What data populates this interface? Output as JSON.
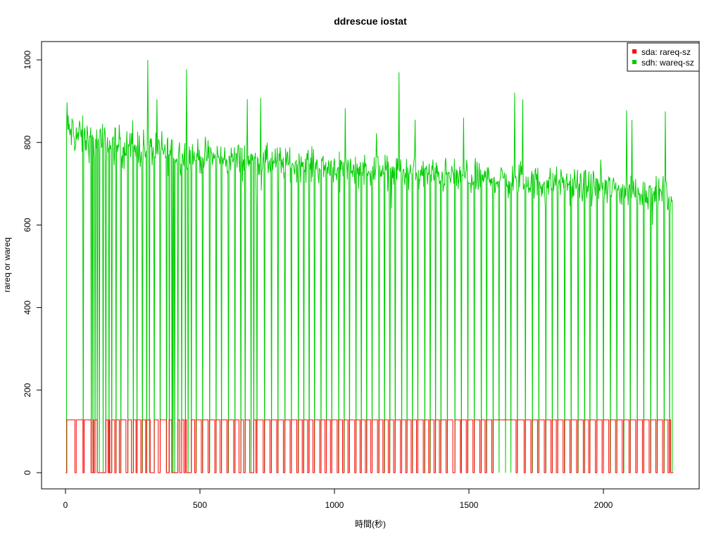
{
  "chart_data": {
    "type": "line",
    "title": "ddrescue iostat",
    "xlabel": "時間(秒)",
    "ylabel": "rareq or wareq",
    "xlim": [
      0,
      2260
    ],
    "ylim": [
      0,
      1000
    ],
    "x_ticks": [
      0,
      500,
      1000,
      1500,
      2000
    ],
    "y_ticks": [
      0,
      200,
      400,
      600,
      800,
      1000
    ],
    "grid": false,
    "legend_position": "top-right",
    "series": [
      {
        "name": "sda: rareq-sz",
        "color": "#ff0000",
        "plateau": 128,
        "low_segments": [
          [
            0,
            5
          ],
          [
            35,
            40
          ],
          [
            65,
            70
          ],
          [
            95,
            102
          ],
          [
            105,
            110
          ],
          [
            118,
            150
          ],
          [
            158,
            162
          ],
          [
            165,
            172
          ],
          [
            183,
            188
          ],
          [
            200,
            205
          ],
          [
            225,
            232
          ],
          [
            245,
            252
          ],
          [
            262,
            266
          ],
          [
            280,
            285
          ],
          [
            298,
            302
          ],
          [
            315,
            330
          ],
          [
            345,
            352
          ],
          [
            375,
            385
          ],
          [
            395,
            418
          ],
          [
            425,
            432
          ],
          [
            440,
            445
          ],
          [
            450,
            468
          ],
          [
            480,
            485
          ],
          [
            505,
            510
          ],
          [
            530,
            535
          ],
          [
            555,
            560
          ],
          [
            575,
            580
          ],
          [
            600,
            605
          ],
          [
            625,
            630
          ],
          [
            645,
            652
          ],
          [
            662,
            668
          ],
          [
            685,
            700
          ],
          [
            708,
            712
          ],
          [
            735,
            740
          ],
          [
            760,
            765
          ],
          [
            785,
            790
          ],
          [
            810,
            815
          ],
          [
            835,
            840
          ],
          [
            860,
            865
          ],
          [
            880,
            885
          ],
          [
            900,
            905
          ],
          [
            920,
            925
          ],
          [
            945,
            950
          ],
          [
            965,
            970
          ],
          [
            985,
            990
          ],
          [
            1010,
            1015
          ],
          [
            1030,
            1035
          ],
          [
            1050,
            1055
          ],
          [
            1075,
            1080
          ],
          [
            1095,
            1100
          ],
          [
            1115,
            1120
          ],
          [
            1135,
            1140
          ],
          [
            1160,
            1165
          ],
          [
            1180,
            1185
          ],
          [
            1200,
            1205
          ],
          [
            1220,
            1225
          ],
          [
            1245,
            1250
          ],
          [
            1265,
            1270
          ],
          [
            1285,
            1290
          ],
          [
            1305,
            1310
          ],
          [
            1330,
            1335
          ],
          [
            1350,
            1355
          ],
          [
            1370,
            1375
          ],
          [
            1390,
            1395
          ],
          [
            1415,
            1420
          ],
          [
            1440,
            1448
          ],
          [
            1468,
            1472
          ],
          [
            1490,
            1495
          ],
          [
            1515,
            1520
          ],
          [
            1540,
            1545
          ],
          [
            1560,
            1565
          ],
          [
            1585,
            1590
          ],
          [
            1675,
            1680
          ],
          [
            1705,
            1710
          ],
          [
            1730,
            1735
          ],
          [
            1755,
            1760
          ],
          [
            1780,
            1785
          ],
          [
            1805,
            1810
          ],
          [
            1825,
            1830
          ],
          [
            1850,
            1855
          ],
          [
            1875,
            1880
          ],
          [
            1900,
            1905
          ],
          [
            1925,
            1930
          ],
          [
            1945,
            1950
          ],
          [
            1970,
            1975
          ],
          [
            1995,
            2000
          ],
          [
            2020,
            2025
          ],
          [
            2045,
            2050
          ],
          [
            2070,
            2075
          ],
          [
            2095,
            2100
          ],
          [
            2120,
            2125
          ],
          [
            2145,
            2150
          ],
          [
            2170,
            2175
          ],
          [
            2195,
            2200
          ],
          [
            2220,
            2225
          ],
          [
            2240,
            2245
          ],
          [
            2250,
            2260
          ]
        ]
      },
      {
        "name": "sdh: wareq-sz",
        "color": "#00cd00",
        "trend": [
          [
            5,
            830
          ],
          [
            100,
            800
          ],
          [
            300,
            785
          ],
          [
            500,
            765
          ],
          [
            1000,
            740
          ],
          [
            1500,
            715
          ],
          [
            2000,
            690
          ],
          [
            2255,
            670
          ]
        ],
        "noise_amplitude": 40,
        "dip_times": [
          65,
          95,
          102,
          110,
          118,
          125,
          140,
          150,
          162,
          172,
          188,
          205,
          232,
          252,
          266,
          285,
          302,
          312,
          330,
          352,
          375,
          385,
          395,
          400,
          405,
          418,
          432,
          445,
          455,
          468,
          485,
          510,
          535,
          560,
          580,
          605,
          630,
          652,
          668,
          690,
          700,
          712,
          740,
          765,
          790,
          815,
          840,
          865,
          885,
          905,
          925,
          950,
          970,
          990,
          1015,
          1035,
          1055,
          1080,
          1100,
          1120,
          1140,
          1165,
          1185,
          1205,
          1225,
          1250,
          1270,
          1290,
          1310,
          1335,
          1355,
          1375,
          1395,
          1420,
          1448,
          1472,
          1495,
          1520,
          1545,
          1565,
          1590,
          1612,
          1635,
          1655,
          1680,
          1710,
          1735,
          1760,
          1785,
          1810,
          1830,
          1855,
          1880,
          1905,
          1930,
          1950,
          1975,
          2000,
          2025,
          2050,
          2075,
          2100,
          2125,
          2150,
          2175,
          2200,
          2225,
          2245
        ],
        "dip_min": 0,
        "spikes": [
          [
            5,
            897
          ],
          [
            265,
            930
          ],
          [
            305,
            1000
          ],
          [
            450,
            977
          ],
          [
            675,
            905
          ],
          [
            725,
            908
          ],
          [
            1040,
            883
          ],
          [
            1240,
            970
          ],
          [
            1300,
            855
          ],
          [
            1480,
            860
          ],
          [
            1670,
            920
          ],
          [
            1700,
            905
          ],
          [
            2085,
            878
          ],
          [
            2105,
            855
          ],
          [
            2230,
            875
          ]
        ]
      }
    ]
  }
}
